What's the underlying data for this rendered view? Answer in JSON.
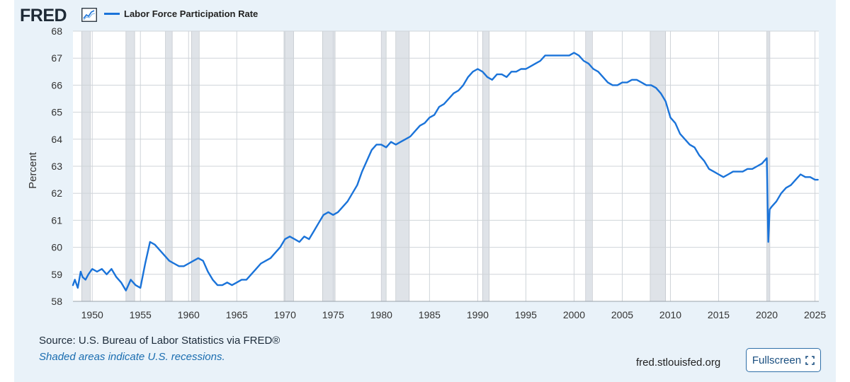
{
  "brand": {
    "logo_text": "FRED"
  },
  "colors": {
    "series": "#1a73d9",
    "recession": "#dfe3e8",
    "grid": "#cfd4d9",
    "panel": "#e9f2f9",
    "link": "#1a6db0"
  },
  "footer": {
    "source": "Source: U.S. Bureau of Labor Statistics via FRED®",
    "recession_note": "Shaded areas indicate U.S. recessions.",
    "site": "fred.stlouisfed.org",
    "fullscreen_label": "Fullscreen"
  },
  "chart_data": {
    "type": "line",
    "title": "",
    "ylabel": "Percent",
    "xlabel": "",
    "xlim": [
      1948,
      2025.4
    ],
    "ylim": [
      58,
      68
    ],
    "x_ticks": [
      "1950",
      "1955",
      "1960",
      "1965",
      "1970",
      "1975",
      "1980",
      "1985",
      "1990",
      "1995",
      "2000",
      "2005",
      "2010",
      "2015",
      "2020",
      "2025"
    ],
    "y_ticks": [
      "58",
      "59",
      "60",
      "61",
      "62",
      "63",
      "64",
      "65",
      "66",
      "67",
      "68"
    ],
    "grid": true,
    "recessions": [
      [
        1948.9,
        1949.8
      ],
      [
        1953.5,
        1954.4
      ],
      [
        1957.6,
        1958.3
      ],
      [
        1960.3,
        1961.1
      ],
      [
        1969.9,
        1970.9
      ],
      [
        1973.9,
        1975.2
      ],
      [
        1980.0,
        1980.5
      ],
      [
        1981.5,
        1982.9
      ],
      [
        1990.5,
        1991.2
      ],
      [
        2001.2,
        2001.9
      ],
      [
        2007.9,
        2009.5
      ],
      [
        2020.1,
        2020.3
      ]
    ],
    "series": [
      {
        "name": "Labor Force Participation Rate",
        "x": [
          1948.0,
          1948.2,
          1948.5,
          1948.8,
          1949.0,
          1949.3,
          1949.6,
          1950.0,
          1950.5,
          1951.0,
          1951.5,
          1952.0,
          1952.5,
          1953.0,
          1953.5,
          1954.0,
          1954.5,
          1955.0,
          1955.5,
          1956.0,
          1956.5,
          1957.0,
          1957.5,
          1958.0,
          1958.5,
          1959.0,
          1959.5,
          1960.0,
          1960.5,
          1961.0,
          1961.5,
          1962.0,
          1962.5,
          1963.0,
          1963.5,
          1964.0,
          1964.5,
          1965.0,
          1965.5,
          1966.0,
          1966.5,
          1967.0,
          1967.5,
          1968.0,
          1968.5,
          1969.0,
          1969.5,
          1970.0,
          1970.5,
          1971.0,
          1971.5,
          1972.0,
          1972.5,
          1973.0,
          1973.5,
          1974.0,
          1974.5,
          1975.0,
          1975.5,
          1976.0,
          1976.5,
          1977.0,
          1977.5,
          1978.0,
          1978.5,
          1979.0,
          1979.5,
          1980.0,
          1980.5,
          1981.0,
          1981.5,
          1982.0,
          1982.5,
          1983.0,
          1983.5,
          1984.0,
          1984.5,
          1985.0,
          1985.5,
          1986.0,
          1986.5,
          1987.0,
          1987.5,
          1988.0,
          1988.5,
          1989.0,
          1989.5,
          1990.0,
          1990.5,
          1991.0,
          1991.5,
          1992.0,
          1992.5,
          1993.0,
          1993.5,
          1994.0,
          1994.5,
          1995.0,
          1995.5,
          1996.0,
          1996.5,
          1997.0,
          1997.5,
          1998.0,
          1998.5,
          1999.0,
          1999.5,
          2000.0,
          2000.5,
          2001.0,
          2001.5,
          2002.0,
          2002.5,
          2003.0,
          2003.5,
          2004.0,
          2004.5,
          2005.0,
          2005.5,
          2006.0,
          2006.5,
          2007.0,
          2007.5,
          2008.0,
          2008.5,
          2009.0,
          2009.5,
          2010.0,
          2010.5,
          2011.0,
          2011.5,
          2012.0,
          2012.5,
          2013.0,
          2013.5,
          2014.0,
          2014.5,
          2015.0,
          2015.5,
          2016.0,
          2016.5,
          2017.0,
          2017.5,
          2018.0,
          2018.5,
          2019.0,
          2019.5,
          2020.0,
          2020.15,
          2020.3,
          2020.5,
          2021.0,
          2021.5,
          2022.0,
          2022.5,
          2023.0,
          2023.5,
          2024.0,
          2024.5,
          2025.0,
          2025.3
        ],
        "values": [
          58.6,
          58.8,
          58.5,
          59.1,
          58.9,
          58.8,
          59.0,
          59.2,
          59.1,
          59.2,
          59.0,
          59.2,
          58.9,
          58.7,
          58.4,
          58.8,
          58.6,
          58.5,
          59.4,
          60.2,
          60.1,
          59.9,
          59.7,
          59.5,
          59.4,
          59.3,
          59.3,
          59.4,
          59.5,
          59.6,
          59.5,
          59.1,
          58.8,
          58.6,
          58.6,
          58.7,
          58.6,
          58.7,
          58.8,
          58.8,
          59.0,
          59.2,
          59.4,
          59.5,
          59.6,
          59.8,
          60.0,
          60.3,
          60.4,
          60.3,
          60.2,
          60.4,
          60.3,
          60.6,
          60.9,
          61.2,
          61.3,
          61.2,
          61.3,
          61.5,
          61.7,
          62.0,
          62.3,
          62.8,
          63.2,
          63.6,
          63.8,
          63.8,
          63.7,
          63.9,
          63.8,
          63.9,
          64.0,
          64.1,
          64.3,
          64.5,
          64.6,
          64.8,
          64.9,
          65.2,
          65.3,
          65.5,
          65.7,
          65.8,
          66.0,
          66.3,
          66.5,
          66.6,
          66.5,
          66.3,
          66.2,
          66.4,
          66.4,
          66.3,
          66.5,
          66.5,
          66.6,
          66.6,
          66.7,
          66.8,
          66.9,
          67.1,
          67.1,
          67.1,
          67.1,
          67.1,
          67.1,
          67.2,
          67.1,
          66.9,
          66.8,
          66.6,
          66.5,
          66.3,
          66.1,
          66.0,
          66.0,
          66.1,
          66.1,
          66.2,
          66.2,
          66.1,
          66.0,
          66.0,
          65.9,
          65.7,
          65.4,
          64.8,
          64.6,
          64.2,
          64.0,
          63.8,
          63.7,
          63.4,
          63.2,
          62.9,
          62.8,
          62.7,
          62.6,
          62.7,
          62.8,
          62.8,
          62.8,
          62.9,
          62.9,
          63.0,
          63.1,
          63.3,
          60.2,
          61.4,
          61.5,
          61.7,
          62.0,
          62.2,
          62.3,
          62.5,
          62.7,
          62.6,
          62.6,
          62.5,
          62.5
        ]
      }
    ]
  }
}
